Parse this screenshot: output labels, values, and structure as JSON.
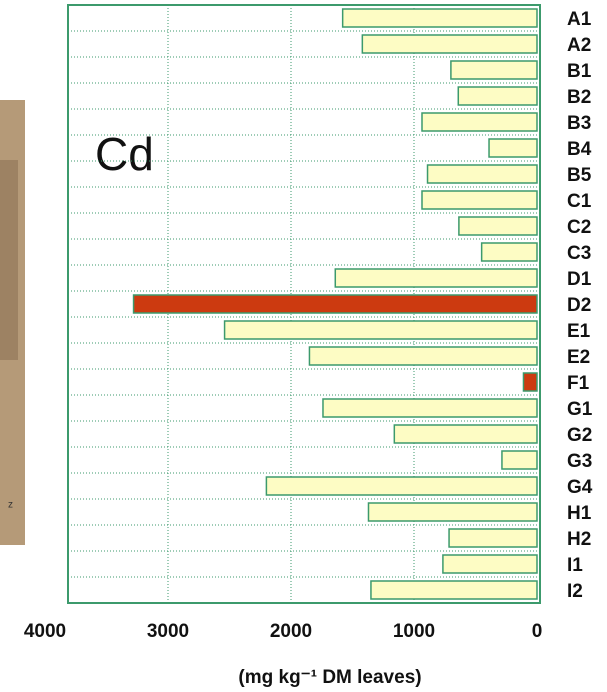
{
  "chart_data": {
    "type": "hbar",
    "annotation": "Cd",
    "photo_caption": "z",
    "x_label": "(mg kg⁻¹ DM leaves)",
    "categories": [
      "A1",
      "A2",
      "B1",
      "B2",
      "B3",
      "B4",
      "B5",
      "C1",
      "C2",
      "C3",
      "D1",
      "D2",
      "E1",
      "E2",
      "F1",
      "G1",
      "G2",
      "G3",
      "G4",
      "H1",
      "H2",
      "I1",
      "I2"
    ],
    "values": [
      1580,
      1420,
      700,
      640,
      935,
      390,
      890,
      935,
      635,
      450,
      1640,
      3280,
      2540,
      1850,
      110,
      1740,
      1160,
      285,
      2200,
      1370,
      715,
      765,
      1350
    ],
    "colors": [
      "#fdfcc4",
      "#fdfcc4",
      "#fdfcc4",
      "#fdfcc4",
      "#fdfcc4",
      "#fdfcc4",
      "#fdfcc4",
      "#fdfcc4",
      "#fdfcc4",
      "#fdfcc4",
      "#fdfcc4",
      "#cc3a10",
      "#fdfcc4",
      "#fdfcc4",
      "#cc3a10",
      "#fdfcc4",
      "#fdfcc4",
      "#fdfcc4",
      "#fdfcc4",
      "#fdfcc4",
      "#fdfcc4",
      "#fdfcc4",
      "#fdfcc4"
    ],
    "xlim": [
      0,
      4000
    ],
    "xticks": [
      0,
      1000,
      2000,
      3000,
      4000
    ],
    "x_reversed": true,
    "grid": true
  }
}
